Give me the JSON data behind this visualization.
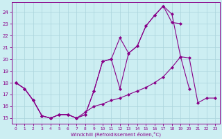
{
  "xlabel": "Windchill (Refroidissement éolien,°C)",
  "xlim": [
    -0.5,
    23.5
  ],
  "ylim": [
    14.5,
    24.8
  ],
  "yticks": [
    15,
    16,
    17,
    18,
    19,
    20,
    21,
    22,
    23,
    24
  ],
  "xticks": [
    0,
    1,
    2,
    3,
    4,
    5,
    6,
    7,
    8,
    9,
    10,
    11,
    12,
    13,
    14,
    15,
    16,
    17,
    18,
    19,
    20,
    21,
    22,
    23
  ],
  "background_color": "#cceef2",
  "grid_color": "#aad4dc",
  "line_color": "#880088",
  "l1x": [
    0,
    1,
    2,
    3,
    4,
    5,
    6,
    7,
    8,
    9,
    10,
    11,
    12,
    13,
    14,
    15,
    16,
    17,
    18,
    19,
    20
  ],
  "l1y": [
    18.0,
    17.5,
    16.5,
    15.2,
    15.0,
    15.3,
    15.3,
    15.0,
    15.3,
    17.3,
    19.8,
    20.0,
    21.8,
    20.5,
    21.1,
    22.8,
    23.7,
    24.5,
    23.8,
    20.2,
    17.5
  ],
  "l2x": [
    0,
    1,
    2,
    3,
    4,
    5,
    6,
    7,
    8,
    9,
    10,
    11,
    12,
    13,
    14,
    15,
    16,
    17,
    18,
    19
  ],
  "l2y": [
    18.0,
    17.5,
    16.5,
    15.2,
    15.0,
    15.3,
    15.3,
    15.0,
    15.3,
    17.3,
    19.8,
    20.0,
    17.5,
    20.5,
    21.1,
    22.8,
    23.7,
    24.5,
    23.1,
    23.0
  ],
  "l3x": [
    0,
    1,
    2,
    3,
    4,
    5,
    6,
    7,
    8,
    9,
    10,
    11,
    12,
    13,
    14,
    15,
    16,
    17,
    18,
    19,
    20,
    21,
    22,
    23
  ],
  "l3y": [
    18.0,
    17.5,
    16.5,
    15.2,
    15.0,
    15.3,
    15.3,
    15.0,
    15.5,
    16.0,
    16.2,
    16.5,
    16.7,
    17.0,
    17.3,
    17.6,
    18.0,
    18.5,
    19.3,
    20.2,
    20.1,
    16.3,
    16.7,
    16.7
  ]
}
